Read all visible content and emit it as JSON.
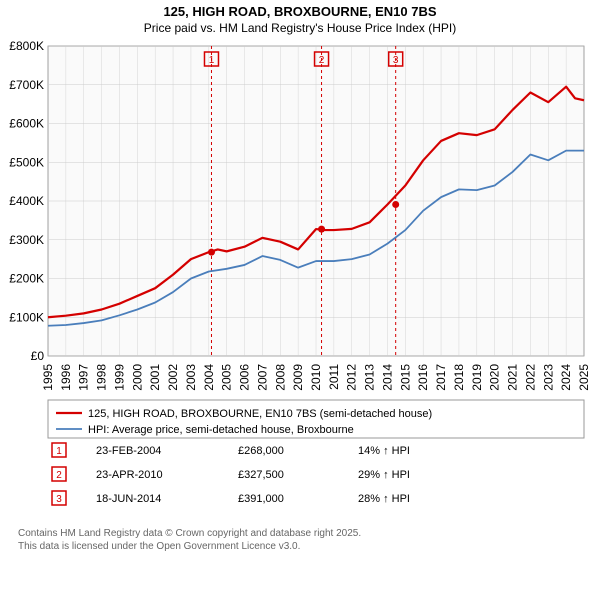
{
  "title_line1": "125, HIGH ROAD, BROXBOURNE, EN10 7BS",
  "title_line2": "Price paid vs. HM Land Registry's House Price Index (HPI)",
  "background_color": "#ffffff",
  "plot_bg": "#fafafa",
  "grid_color": "#cccccc",
  "axis_color": "#333333",
  "x": {
    "min": 1995,
    "max": 2025,
    "ticks": [
      1995,
      1996,
      1997,
      1998,
      1999,
      2000,
      2001,
      2002,
      2003,
      2004,
      2005,
      2006,
      2007,
      2008,
      2009,
      2010,
      2011,
      2012,
      2013,
      2014,
      2015,
      2016,
      2017,
      2018,
      2019,
      2020,
      2021,
      2022,
      2023,
      2024,
      2025
    ]
  },
  "y": {
    "min": 0,
    "max": 800000,
    "ticks": [
      0,
      100000,
      200000,
      300000,
      400000,
      500000,
      600000,
      700000,
      800000
    ],
    "labels": [
      "£0",
      "£100K",
      "£200K",
      "£300K",
      "£400K",
      "£500K",
      "£600K",
      "£700K",
      "£800K"
    ]
  },
  "series": [
    {
      "name": "125, HIGH ROAD, BROXBOURNE, EN10 7BS (semi-detached house)",
      "color": "#d40000",
      "width": 2.2,
      "data": [
        [
          1995,
          100000
        ],
        [
          1996,
          104000
        ],
        [
          1997,
          110000
        ],
        [
          1998,
          120000
        ],
        [
          1999,
          135000
        ],
        [
          2000,
          155000
        ],
        [
          2001,
          175000
        ],
        [
          2002,
          210000
        ],
        [
          2003,
          250000
        ],
        [
          2004,
          268000
        ],
        [
          2004.5,
          275000
        ],
        [
          2005,
          270000
        ],
        [
          2006,
          282000
        ],
        [
          2007,
          305000
        ],
        [
          2008,
          295000
        ],
        [
          2009,
          275000
        ],
        [
          2010,
          327500
        ],
        [
          2010.5,
          325000
        ],
        [
          2011,
          325000
        ],
        [
          2012,
          328000
        ],
        [
          2013,
          345000
        ],
        [
          2014,
          391000
        ],
        [
          2015,
          440000
        ],
        [
          2016,
          505000
        ],
        [
          2017,
          555000
        ],
        [
          2018,
          575000
        ],
        [
          2019,
          570000
        ],
        [
          2020,
          585000
        ],
        [
          2021,
          635000
        ],
        [
          2022,
          680000
        ],
        [
          2023,
          655000
        ],
        [
          2024,
          695000
        ],
        [
          2024.5,
          665000
        ],
        [
          2025,
          660000
        ]
      ]
    },
    {
      "name": "HPI: Average price, semi-detached house, Broxbourne",
      "color": "#4a7ebb",
      "width": 1.8,
      "data": [
        [
          1995,
          78000
        ],
        [
          1996,
          80000
        ],
        [
          1997,
          85000
        ],
        [
          1998,
          92000
        ],
        [
          1999,
          105000
        ],
        [
          2000,
          120000
        ],
        [
          2001,
          138000
        ],
        [
          2002,
          165000
        ],
        [
          2003,
          200000
        ],
        [
          2004,
          218000
        ],
        [
          2005,
          225000
        ],
        [
          2006,
          235000
        ],
        [
          2007,
          258000
        ],
        [
          2008,
          248000
        ],
        [
          2009,
          228000
        ],
        [
          2010,
          245000
        ],
        [
          2011,
          245000
        ],
        [
          2012,
          250000
        ],
        [
          2013,
          262000
        ],
        [
          2014,
          290000
        ],
        [
          2015,
          325000
        ],
        [
          2016,
          375000
        ],
        [
          2017,
          410000
        ],
        [
          2018,
          430000
        ],
        [
          2019,
          428000
        ],
        [
          2020,
          440000
        ],
        [
          2021,
          475000
        ],
        [
          2022,
          520000
        ],
        [
          2023,
          505000
        ],
        [
          2024,
          530000
        ],
        [
          2025,
          530000
        ]
      ]
    }
  ],
  "transactions": [
    {
      "n": "1",
      "year": 2004.15,
      "value": 268000,
      "date": "23-FEB-2004",
      "price": "£268,000",
      "delta": "14% ↑ HPI",
      "color": "#d40000"
    },
    {
      "n": "2",
      "year": 2010.31,
      "value": 327500,
      "date": "23-APR-2010",
      "price": "£327,500",
      "delta": "29% ↑ HPI",
      "color": "#d40000"
    },
    {
      "n": "3",
      "year": 2014.46,
      "value": 391000,
      "date": "18-JUN-2014",
      "price": "£391,000",
      "delta": "28% ↑ HPI",
      "color": "#d40000"
    }
  ],
  "legend_border": "#999999",
  "footer1": "Contains HM Land Registry data © Crown copyright and database right 2025.",
  "footer2": "This data is licensed under the Open Government Licence v3.0."
}
